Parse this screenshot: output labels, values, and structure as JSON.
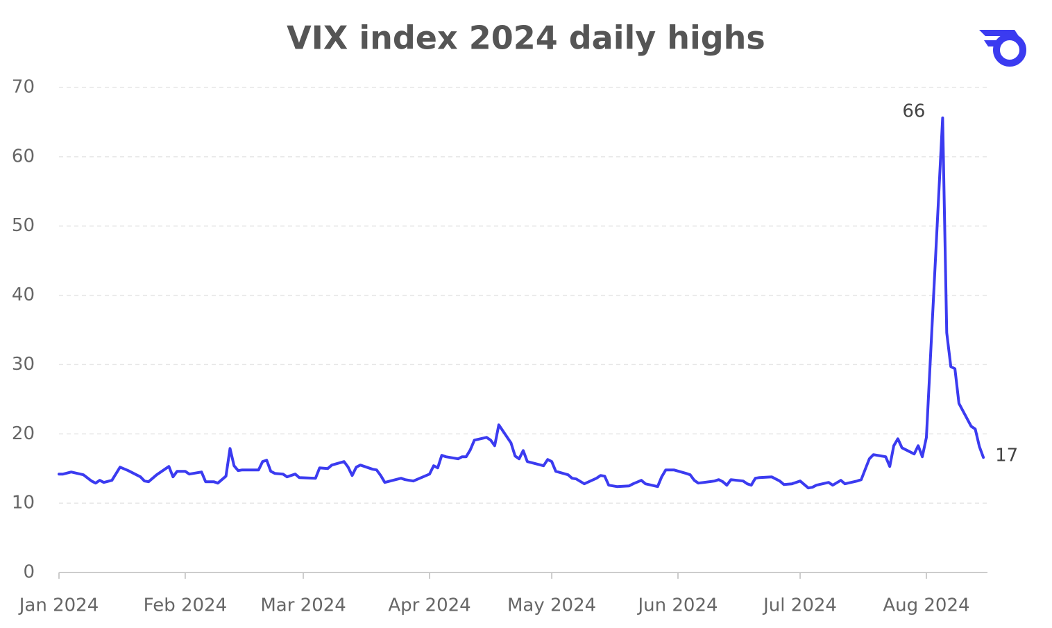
{
  "chart_data": {
    "type": "line",
    "title": "VIX index 2024 daily highs",
    "color": "#3b3bf0",
    "grid": true,
    "xlim": [
      0,
      228
    ],
    "xticks": [
      {
        "value": 0,
        "label": "Jan 2024"
      },
      {
        "value": 31,
        "label": "Feb 2024"
      },
      {
        "value": 60,
        "label": "Mar 2024"
      },
      {
        "value": 91,
        "label": "Apr 2024"
      },
      {
        "value": 121,
        "label": "May 2024"
      },
      {
        "value": 152,
        "label": "Jun 2024"
      },
      {
        "value": 182,
        "label": "Jul 2024"
      },
      {
        "value": 213,
        "label": "Aug 2024"
      }
    ],
    "ylim": [
      0,
      70
    ],
    "yticks": [
      0,
      10,
      20,
      30,
      40,
      50,
      60,
      70
    ],
    "x": [
      0,
      1,
      3,
      6,
      8,
      9,
      10,
      11,
      13,
      15,
      17,
      20,
      21,
      22,
      24,
      27,
      28,
      29,
      31,
      32,
      35,
      36,
      38,
      39,
      41,
      42,
      43,
      44,
      45,
      49,
      50,
      51,
      52,
      53,
      55,
      56,
      58,
      59,
      63,
      64,
      66,
      67,
      70,
      71,
      72,
      73,
      74,
      77,
      78,
      79,
      80,
      84,
      85,
      87,
      91,
      92,
      93,
      94,
      95,
      98,
      99,
      100,
      101,
      102,
      105,
      106,
      107,
      108,
      111,
      112,
      113,
      114,
      115,
      119,
      120,
      121,
      122,
      125,
      126,
      127,
      129,
      132,
      133,
      134,
      135,
      137,
      140,
      141,
      143,
      144,
      147,
      148,
      149,
      151,
      154,
      155,
      156,
      157,
      161,
      162,
      163,
      164,
      165,
      168,
      169,
      170,
      171,
      172,
      175,
      176,
      177,
      178,
      180,
      182,
      184,
      185,
      186,
      189,
      190,
      192,
      193,
      196,
      197,
      198,
      199,
      200,
      203,
      204,
      205,
      206,
      207,
      210,
      211,
      212,
      213,
      217,
      218,
      219,
      220,
      221,
      224,
      225,
      226,
      227
    ],
    "values": [
      14.2,
      14.2,
      14.5,
      14.1,
      13.2,
      12.9,
      13.3,
      13.0,
      13.3,
      15.2,
      14.7,
      13.8,
      13.2,
      13.1,
      14.1,
      15.3,
      13.8,
      14.6,
      14.6,
      14.2,
      14.5,
      13.1,
      13.1,
      12.9,
      13.9,
      17.9,
      15.4,
      14.7,
      14.8,
      14.8,
      16.0,
      16.2,
      14.6,
      14.3,
      14.2,
      13.8,
      14.2,
      13.7,
      13.6,
      15.1,
      15.0,
      15.5,
      16.0,
      15.2,
      14.0,
      15.2,
      15.5,
      14.9,
      14.8,
      14.0,
      13.0,
      13.6,
      13.4,
      13.2,
      14.2,
      15.4,
      15.1,
      16.9,
      16.7,
      16.4,
      16.7,
      16.7,
      17.7,
      19.1,
      19.5,
      19.1,
      18.3,
      21.3,
      18.7,
      16.8,
      16.4,
      17.6,
      16.0,
      15.4,
      16.3,
      16.0,
      14.6,
      14.1,
      13.6,
      13.5,
      12.8,
      13.6,
      14.0,
      13.9,
      12.6,
      12.4,
      12.5,
      12.8,
      13.3,
      12.8,
      12.4,
      13.8,
      14.8,
      14.8,
      14.3,
      14.1,
      13.3,
      12.9,
      13.2,
      13.4,
      13.1,
      12.6,
      13.4,
      13.2,
      12.8,
      12.6,
      13.6,
      13.7,
      13.8,
      13.5,
      13.2,
      12.7,
      12.8,
      13.2,
      12.2,
      12.3,
      12.6,
      13.0,
      12.6,
      13.3,
      12.8,
      13.2,
      13.4,
      14.9,
      16.4,
      17.0,
      16.7,
      15.3,
      18.3,
      19.3,
      18.0,
      17.1,
      18.3,
      16.7,
      19.5,
      65.6,
      34.6,
      29.7,
      29.4,
      24.4,
      21.1,
      20.7,
      18.2,
      16.6
    ],
    "value_labels": [
      null,
      null,
      null,
      null,
      null,
      null,
      null,
      null,
      null,
      null,
      null,
      null,
      null,
      null,
      null,
      null,
      null,
      null,
      null,
      null,
      null,
      null,
      null,
      null,
      null,
      null,
      null,
      null,
      null,
      null,
      null,
      null,
      null,
      null,
      null,
      null,
      null,
      null,
      null,
      null,
      null,
      null,
      null,
      null,
      null,
      null,
      null,
      null,
      null,
      null,
      null,
      null,
      null,
      null,
      null,
      null,
      null,
      null,
      null,
      null,
      null,
      null,
      null,
      null,
      null,
      null,
      null,
      null,
      null,
      null,
      null,
      null,
      null,
      null,
      null,
      null,
      null,
      null,
      null,
      null,
      null,
      null,
      null,
      null,
      null,
      null,
      null,
      null,
      null,
      null,
      null,
      null,
      null,
      null,
      null,
      null,
      null,
      null,
      null,
      null,
      null,
      null,
      null,
      null,
      null,
      null,
      null,
      null,
      null,
      null,
      null,
      null,
      null,
      null,
      null,
      null,
      null,
      null,
      null,
      null,
      null,
      null,
      null,
      null,
      null,
      null,
      null,
      null,
      null,
      null,
      null,
      null,
      null,
      null,
      null,
      "66",
      null,
      null,
      null,
      null,
      null,
      null,
      null,
      "17"
    ]
  }
}
